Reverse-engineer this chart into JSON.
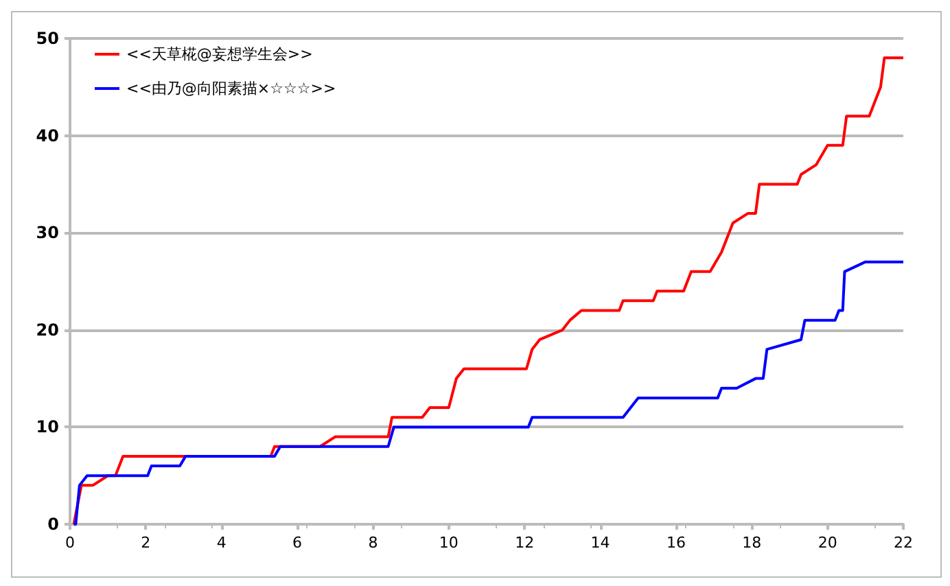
{
  "chart_data": {
    "type": "line",
    "xlim": [
      0,
      22
    ],
    "xticks": [
      0,
      2,
      4,
      6,
      8,
      10,
      12,
      14,
      16,
      18,
      20,
      22
    ],
    "ylim": [
      0,
      50
    ],
    "yticks": [
      0,
      10,
      20,
      30,
      40,
      50
    ],
    "grid": "y",
    "legend": "top left",
    "marker": "none",
    "line_style": "solid",
    "series": [
      {
        "name": "<<天草椛@妄想学生会>>",
        "color": "#ff0000",
        "x": [
          0.1,
          0.2,
          0.3,
          0.6,
          1.0,
          1.2,
          1.3,
          1.4,
          5.3,
          5.4,
          6.6,
          7.0,
          8.4,
          8.5,
          9.3,
          9.5,
          10.0,
          10.2,
          10.4,
          12.05,
          12.2,
          12.4,
          13.0,
          13.2,
          13.5,
          14.5,
          14.6,
          15.4,
          15.5,
          16.2,
          16.4,
          16.9,
          17.2,
          17.5,
          17.9,
          18.1,
          18.2,
          19.2,
          19.3,
          19.7,
          20.0,
          20.4,
          20.5,
          21.1,
          21.2,
          21.4,
          21.5,
          22
        ],
        "values": [
          0,
          2,
          4,
          4,
          5,
          5,
          6,
          7,
          7,
          8,
          8,
          9,
          9,
          11,
          11,
          12,
          12,
          15,
          16,
          16,
          18,
          19,
          20,
          21,
          22,
          22,
          23,
          23,
          24,
          24,
          26,
          26,
          28,
          31,
          32,
          32,
          35,
          35,
          36,
          37,
          39,
          39,
          42,
          42,
          43,
          45,
          48,
          48
        ]
      },
      {
        "name": "<<由乃@向阳素描×☆☆☆>>",
        "color": "#0000ff",
        "x": [
          0.1,
          0.15,
          0.25,
          0.45,
          2.05,
          2.15,
          2.9,
          3.05,
          5.4,
          5.55,
          8.4,
          8.55,
          12.1,
          12.2,
          14.6,
          15.0,
          17.1,
          17.2,
          17.6,
          18.1,
          18.3,
          18.4,
          19.3,
          19.4,
          20.2,
          20.3,
          20.4,
          20.45,
          21.0,
          21.2,
          22
        ],
        "values": [
          0,
          0,
          4,
          5,
          5,
          6,
          6,
          7,
          7,
          8,
          8,
          10,
          10,
          11,
          11,
          13,
          13,
          14,
          14,
          15,
          15,
          18,
          19,
          21,
          21,
          22,
          22,
          26,
          27,
          27,
          27
        ]
      }
    ]
  }
}
